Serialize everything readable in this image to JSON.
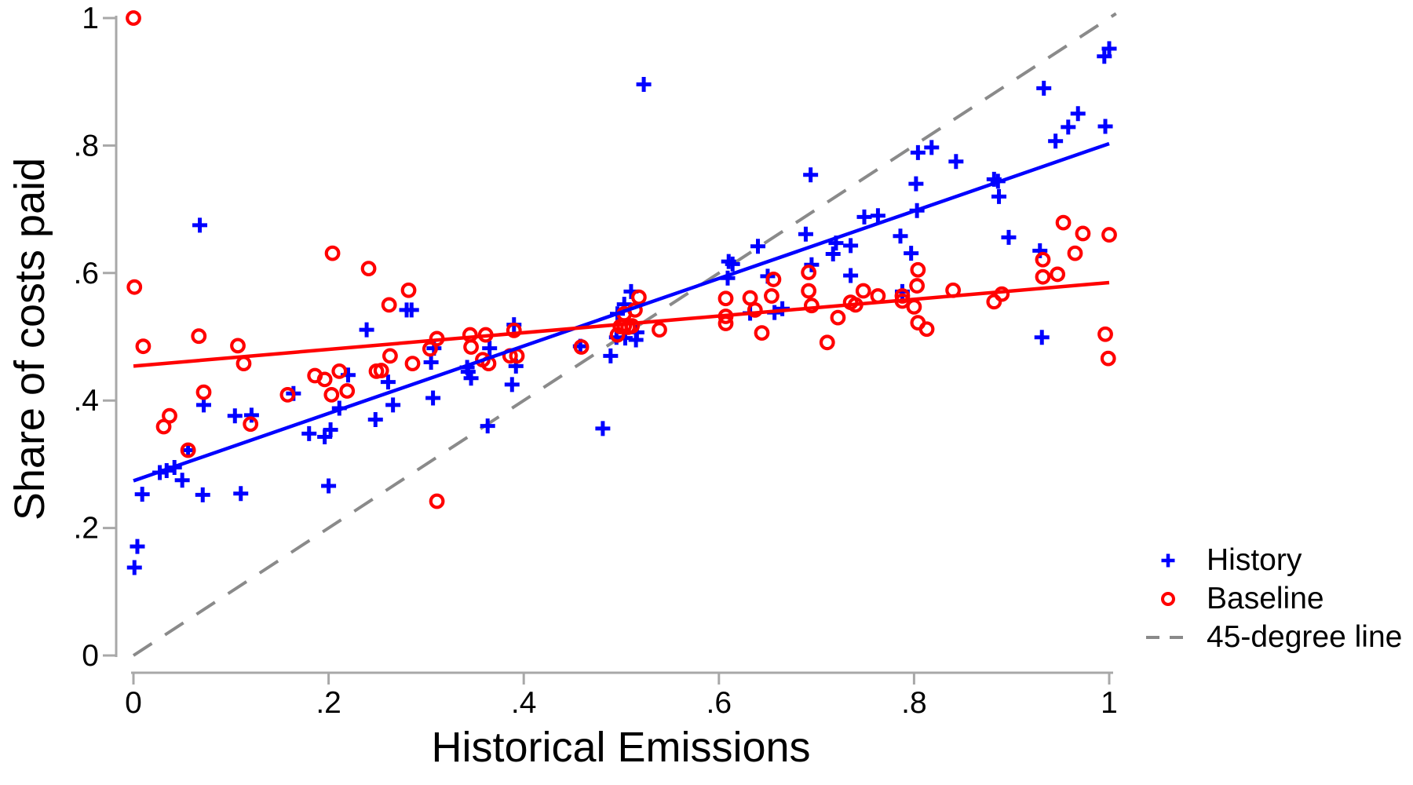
{
  "figure": {
    "background": "#ffffff"
  },
  "legend": {
    "items": [
      {
        "label": "History",
        "marker": "plus",
        "color": "#0000ff"
      },
      {
        "label": "Baseline",
        "marker": "circle",
        "color": "#ff0000"
      },
      {
        "label": "45-degree line",
        "marker": "dash",
        "color": "#8a8a8a"
      }
    ]
  },
  "chart_data": {
    "type": "scatter",
    "title": "",
    "xlabel": "Historical Emissions",
    "ylabel": "Share of costs paid",
    "xlim": [
      0,
      1
    ],
    "ylim": [
      0,
      1
    ],
    "grid": false,
    "legend_position": "outside-right-bottom",
    "axis_color": "#a8a8a8",
    "text_color": "#000000",
    "xticks": [
      {
        "v": 0,
        "label": "0"
      },
      {
        "v": 0.2,
        "label": ".2"
      },
      {
        "v": 0.4,
        "label": ".4"
      },
      {
        "v": 0.6,
        "label": ".6"
      },
      {
        "v": 0.8,
        "label": ".8"
      },
      {
        "v": 1,
        "label": "1"
      }
    ],
    "yticks": [
      {
        "v": 0,
        "label": "0"
      },
      {
        "v": 0.2,
        "label": ".2"
      },
      {
        "v": 0.4,
        "label": ".4"
      },
      {
        "v": 0.6,
        "label": ".6"
      },
      {
        "v": 0.8,
        "label": ".8"
      },
      {
        "v": 1,
        "label": "1"
      }
    ],
    "series": [
      {
        "name": "History",
        "marker": "plus",
        "color": "#0000ff",
        "points": [
          [
            0.001,
            0.138
          ],
          [
            0.004,
            0.171
          ],
          [
            0.009,
            0.253
          ],
          [
            0.027,
            0.287
          ],
          [
            0.034,
            0.29
          ],
          [
            0.042,
            0.295
          ],
          [
            0.05,
            0.275
          ],
          [
            0.056,
            0.322
          ],
          [
            0.068,
            0.675
          ],
          [
            0.071,
            0.252
          ],
          [
            0.072,
            0.393
          ],
          [
            0.104,
            0.376
          ],
          [
            0.11,
            0.254
          ],
          [
            0.121,
            0.377
          ],
          [
            0.164,
            0.411
          ],
          [
            0.18,
            0.348
          ],
          [
            0.196,
            0.343
          ],
          [
            0.2,
            0.266
          ],
          [
            0.202,
            0.354
          ],
          [
            0.211,
            0.388
          ],
          [
            0.22,
            0.44
          ],
          [
            0.239,
            0.511
          ],
          [
            0.248,
            0.37
          ],
          [
            0.261,
            0.429
          ],
          [
            0.266,
            0.393
          ],
          [
            0.28,
            0.542
          ],
          [
            0.285,
            0.542
          ],
          [
            0.305,
            0.46
          ],
          [
            0.307,
            0.404
          ],
          [
            0.308,
            0.482
          ],
          [
            0.342,
            0.452
          ],
          [
            0.343,
            0.445
          ],
          [
            0.346,
            0.435
          ],
          [
            0.363,
            0.36
          ],
          [
            0.365,
            0.482
          ],
          [
            0.388,
            0.425
          ],
          [
            0.39,
            0.519
          ],
          [
            0.392,
            0.454
          ],
          [
            0.458,
            0.485
          ],
          [
            0.481,
            0.356
          ],
          [
            0.489,
            0.47
          ],
          [
            0.495,
            0.499
          ],
          [
            0.496,
            0.536
          ],
          [
            0.503,
            0.551
          ],
          [
            0.504,
            0.498
          ],
          [
            0.51,
            0.571
          ],
          [
            0.515,
            0.495
          ],
          [
            0.516,
            0.507
          ],
          [
            0.523,
            0.896
          ],
          [
            0.609,
            0.592
          ],
          [
            0.61,
            0.618
          ],
          [
            0.614,
            0.614
          ],
          [
            0.632,
            0.537
          ],
          [
            0.64,
            0.642
          ],
          [
            0.65,
            0.595
          ],
          [
            0.657,
            0.538
          ],
          [
            0.665,
            0.544
          ],
          [
            0.689,
            0.661
          ],
          [
            0.694,
            0.754
          ],
          [
            0.695,
            0.613
          ],
          [
            0.717,
            0.63
          ],
          [
            0.72,
            0.647
          ],
          [
            0.735,
            0.643
          ],
          [
            0.735,
            0.596
          ],
          [
            0.749,
            0.688
          ],
          [
            0.763,
            0.69
          ],
          [
            0.786,
            0.658
          ],
          [
            0.788,
            0.571
          ],
          [
            0.797,
            0.631
          ],
          [
            0.802,
            0.74
          ],
          [
            0.803,
            0.698
          ],
          [
            0.804,
            0.789
          ],
          [
            0.818,
            0.797
          ],
          [
            0.843,
            0.775
          ],
          [
            0.882,
            0.747
          ],
          [
            0.886,
            0.744
          ],
          [
            0.887,
            0.72
          ],
          [
            0.897,
            0.656
          ],
          [
            0.929,
            0.635
          ],
          [
            0.931,
            0.499
          ],
          [
            0.933,
            0.89
          ],
          [
            0.945,
            0.807
          ],
          [
            0.958,
            0.829
          ],
          [
            0.968,
            0.85
          ],
          [
            0.995,
            0.94
          ],
          [
            0.996,
            0.83
          ],
          [
            1.0,
            0.952
          ]
        ]
      },
      {
        "name": "Baseline",
        "marker": "circle",
        "color": "#ff0000",
        "points": [
          [
            0.0,
            1.0
          ],
          [
            0.001,
            0.578
          ],
          [
            0.01,
            0.485
          ],
          [
            0.031,
            0.359
          ],
          [
            0.037,
            0.376
          ],
          [
            0.056,
            0.322
          ],
          [
            0.067,
            0.501
          ],
          [
            0.072,
            0.413
          ],
          [
            0.107,
            0.486
          ],
          [
            0.113,
            0.458
          ],
          [
            0.12,
            0.363
          ],
          [
            0.158,
            0.409
          ],
          [
            0.186,
            0.439
          ],
          [
            0.196,
            0.433
          ],
          [
            0.203,
            0.409
          ],
          [
            0.204,
            0.631
          ],
          [
            0.211,
            0.446
          ],
          [
            0.219,
            0.415
          ],
          [
            0.241,
            0.607
          ],
          [
            0.249,
            0.446
          ],
          [
            0.254,
            0.447
          ],
          [
            0.262,
            0.55
          ],
          [
            0.263,
            0.47
          ],
          [
            0.282,
            0.573
          ],
          [
            0.286,
            0.458
          ],
          [
            0.304,
            0.481
          ],
          [
            0.311,
            0.497
          ],
          [
            0.311,
            0.242
          ],
          [
            0.345,
            0.503
          ],
          [
            0.346,
            0.484
          ],
          [
            0.358,
            0.464
          ],
          [
            0.361,
            0.503
          ],
          [
            0.364,
            0.458
          ],
          [
            0.386,
            0.47
          ],
          [
            0.39,
            0.51
          ],
          [
            0.393,
            0.47
          ],
          [
            0.459,
            0.484
          ],
          [
            0.496,
            0.503
          ],
          [
            0.499,
            0.516
          ],
          [
            0.503,
            0.517
          ],
          [
            0.503,
            0.536
          ],
          [
            0.507,
            0.515
          ],
          [
            0.511,
            0.517
          ],
          [
            0.514,
            0.542
          ],
          [
            0.518,
            0.562
          ],
          [
            0.539,
            0.511
          ],
          [
            0.607,
            0.56
          ],
          [
            0.607,
            0.532
          ],
          [
            0.607,
            0.521
          ],
          [
            0.632,
            0.561
          ],
          [
            0.637,
            0.542
          ],
          [
            0.644,
            0.506
          ],
          [
            0.654,
            0.564
          ],
          [
            0.656,
            0.59
          ],
          [
            0.692,
            0.601
          ],
          [
            0.692,
            0.572
          ],
          [
            0.695,
            0.549
          ],
          [
            0.711,
            0.491
          ],
          [
            0.722,
            0.53
          ],
          [
            0.735,
            0.554
          ],
          [
            0.74,
            0.55
          ],
          [
            0.748,
            0.572
          ],
          [
            0.763,
            0.564
          ],
          [
            0.788,
            0.564
          ],
          [
            0.788,
            0.556
          ],
          [
            0.8,
            0.547
          ],
          [
            0.803,
            0.58
          ],
          [
            0.804,
            0.605
          ],
          [
            0.804,
            0.522
          ],
          [
            0.813,
            0.512
          ],
          [
            0.84,
            0.573
          ],
          [
            0.882,
            0.555
          ],
          [
            0.89,
            0.567
          ],
          [
            0.932,
            0.621
          ],
          [
            0.932,
            0.594
          ],
          [
            0.947,
            0.598
          ],
          [
            0.953,
            0.679
          ],
          [
            0.965,
            0.631
          ],
          [
            0.973,
            0.662
          ],
          [
            0.996,
            0.504
          ],
          [
            0.999,
            0.466
          ],
          [
            1.0,
            0.66
          ]
        ]
      }
    ],
    "lines": [
      {
        "name": "45-degree line",
        "color": "#8a8a8a",
        "style": "dashed",
        "points": [
          [
            0,
            0
          ],
          [
            1.007,
            1.007
          ]
        ]
      },
      {
        "name": "History linear fit",
        "color": "#0000ff",
        "style": "solid",
        "points": [
          [
            0,
            0.274
          ],
          [
            1,
            0.803
          ]
        ]
      },
      {
        "name": "Baseline linear fit",
        "color": "#ff0000",
        "style": "solid",
        "points": [
          [
            0,
            0.454
          ],
          [
            1,
            0.585
          ]
        ]
      }
    ]
  }
}
